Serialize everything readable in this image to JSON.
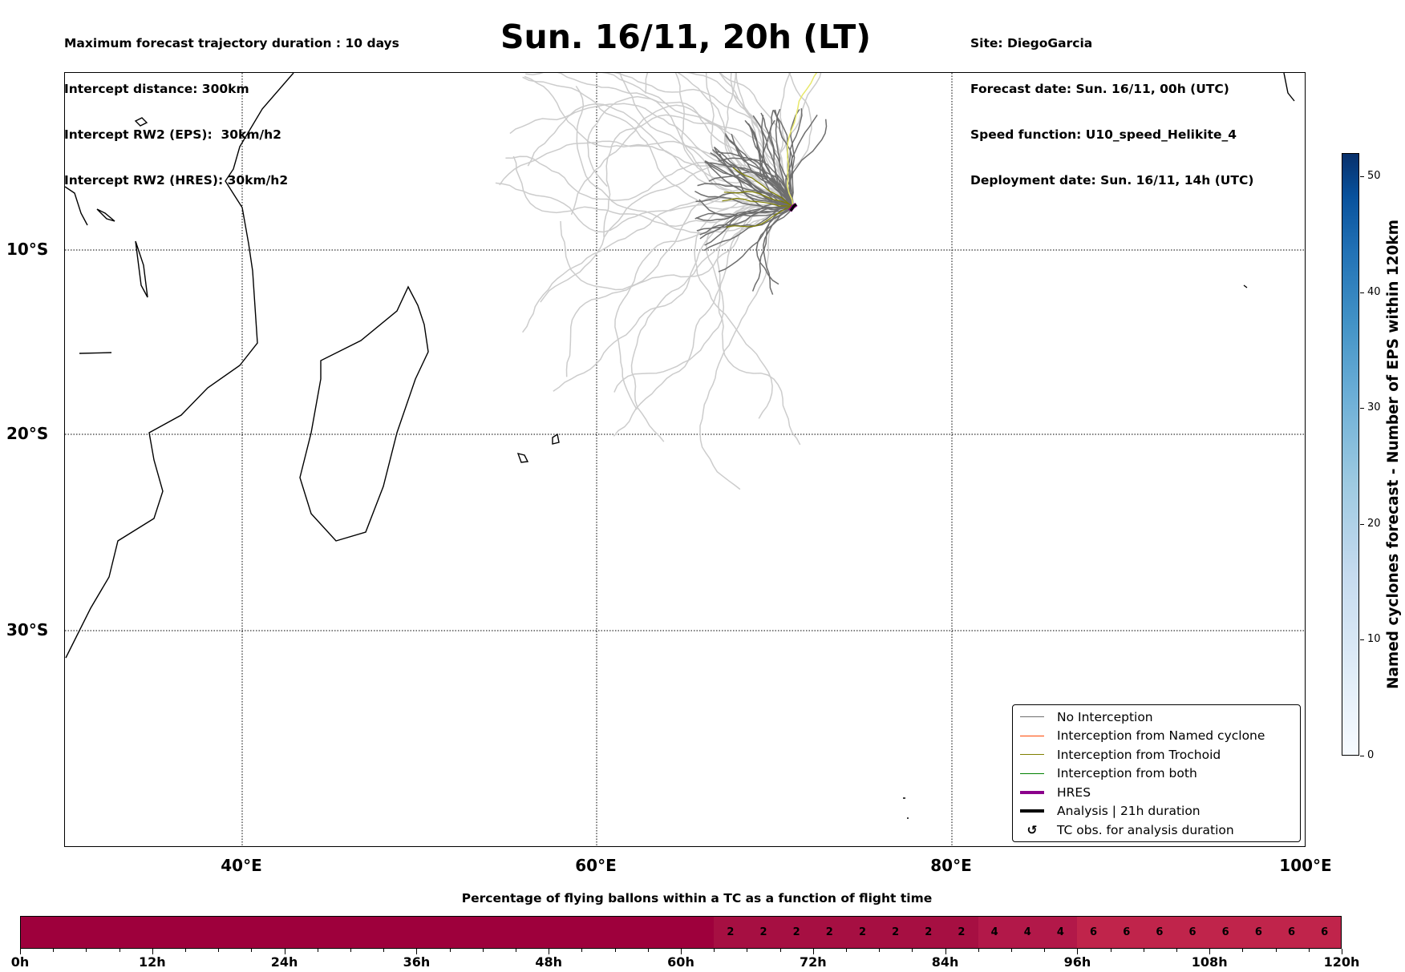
{
  "header": {
    "left_lines": [
      "Maximum forecast trajectory duration : 10 days",
      "Intercept distance: 300km",
      "Intercept RW2 (EPS):  30km/h2",
      "Intercept RW2 (HRES): 30km/h2"
    ],
    "title": "Sun. 16/11, 20h (LT)",
    "right_lines": [
      "Site: DiegoGarcia",
      "Forecast date: Sun. 16/11, 00h (UTC)",
      "Speed function: U10_speed_Helikite_4",
      "Deployment date: Sun. 16/11, 14h (UTC)"
    ]
  },
  "map": {
    "lon_labels": [
      "40°E",
      "60°E",
      "80°E",
      "100°E"
    ],
    "lat_labels": [
      "10°S",
      "20°S",
      "30°S"
    ]
  },
  "legend": [
    {
      "label": "No Interception",
      "color": "#6e6e6e"
    },
    {
      "label": "Interception from Named cyclone",
      "color": "#ff4500"
    },
    {
      "label": "Interception from Trochoid",
      "color": "#808000"
    },
    {
      "label": "Interception from both",
      "color": "#008000"
    },
    {
      "label": "HRES",
      "color": "#8b008b"
    },
    {
      "label": "Analysis | 21h duration",
      "color": "#000000"
    },
    {
      "label": "TC obs. for analysis duration",
      "icon": "cyclone-icon",
      "glyph": "↺"
    }
  ],
  "colorbar": {
    "label": "Named cyclones forecast - Number of EPS within 120km",
    "ticks": [
      "0",
      "10",
      "20",
      "30",
      "40",
      "50"
    ],
    "range": [
      0,
      52
    ]
  },
  "timebar": {
    "title": "Percentage of flying ballons within a TC as a function of flight time",
    "tick_labels": [
      "0h",
      "12h",
      "24h",
      "36h",
      "48h",
      "60h",
      "72h",
      "84h",
      "96h",
      "108h",
      "120h"
    ],
    "cells": [
      "",
      "",
      "",
      "",
      "",
      "",
      "",
      "",
      "",
      "",
      "",
      "",
      "",
      "",
      "",
      "",
      "",
      "",
      "",
      "",
      "",
      "2",
      "2",
      "2",
      "2",
      "2",
      "2",
      "2",
      "2",
      "4",
      "4",
      "4",
      "6",
      "6",
      "6",
      "6",
      "6",
      "6",
      "6",
      "6"
    ],
    "colors": {
      "0": "#9e003c",
      "2": "#a60f42",
      "4": "#b21849",
      "6": "#c0244b"
    }
  }
}
